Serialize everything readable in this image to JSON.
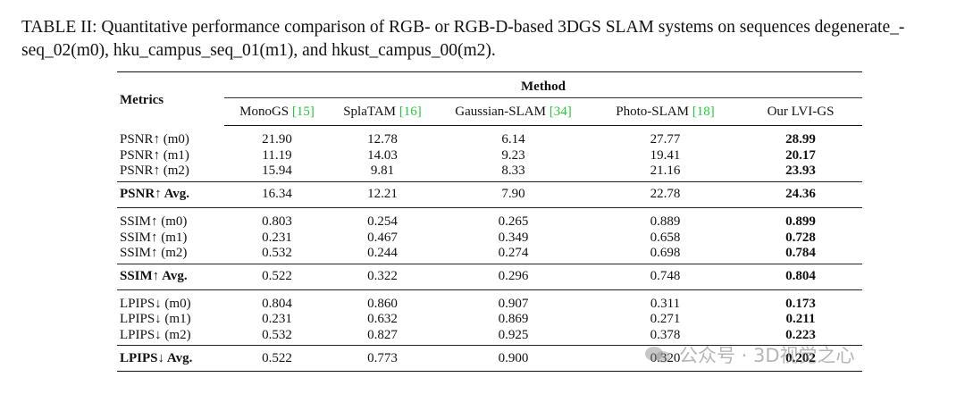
{
  "caption": "TABLE II: Quantitative performance comparison of RGB- or RGB-D-based 3DGS SLAM systems on sequences degenerate_-seq_02(m0), hku_campus_seq_01(m1), and hkust_campus_00(m2).",
  "header": {
    "metrics_label": "Metrics",
    "method_label": "Method",
    "methods": [
      {
        "name": "MonoGS",
        "ref": "[15]"
      },
      {
        "name": "SplaTAM",
        "ref": "[16]"
      },
      {
        "name": "Gaussian-SLAM",
        "ref": "[34]"
      },
      {
        "name": "Photo-SLAM",
        "ref": "[18]"
      },
      {
        "name": "Our LVI-GS",
        "ref": ""
      }
    ]
  },
  "groups": [
    {
      "rows": [
        {
          "metric": "PSNR↑ (m0)",
          "values": [
            "21.90",
            "12.78",
            "6.14",
            "27.77",
            "28.99"
          ]
        },
        {
          "metric": "PSNR↑ (m1)",
          "values": [
            "11.19",
            "14.03",
            "9.23",
            "19.41",
            "20.17"
          ]
        },
        {
          "metric": "PSNR↑ (m2)",
          "values": [
            "15.94",
            "9.81",
            "8.33",
            "21.16",
            "23.93"
          ]
        }
      ],
      "avg": {
        "metric": "PSNR↑ Avg.",
        "values": [
          "16.34",
          "12.21",
          "7.90",
          "22.78",
          "24.36"
        ]
      }
    },
    {
      "rows": [
        {
          "metric": "SSIM↑ (m0)",
          "values": [
            "0.803",
            "0.254",
            "0.265",
            "0.889",
            "0.899"
          ]
        },
        {
          "metric": "SSIM↑ (m1)",
          "values": [
            "0.231",
            "0.467",
            "0.349",
            "0.658",
            "0.728"
          ]
        },
        {
          "metric": "SSIM↑ (m2)",
          "values": [
            "0.532",
            "0.244",
            "0.274",
            "0.698",
            "0.784"
          ]
        }
      ],
      "avg": {
        "metric": "SSIM↑ Avg.",
        "values": [
          "0.522",
          "0.322",
          "0.296",
          "0.748",
          "0.804"
        ]
      }
    },
    {
      "rows": [
        {
          "metric": "LPIPS↓ (m0)",
          "values": [
            "0.804",
            "0.860",
            "0.907",
            "0.311",
            "0.173"
          ]
        },
        {
          "metric": "LPIPS↓ (m1)",
          "values": [
            "0.231",
            "0.632",
            "0.869",
            "0.271",
            "0.211"
          ]
        },
        {
          "metric": "LPIPS↓ (m2)",
          "values": [
            "0.532",
            "0.827",
            "0.925",
            "0.378",
            "0.223"
          ]
        }
      ],
      "avg": {
        "metric": "LPIPS↓ Avg.",
        "values": [
          "0.522",
          "0.773",
          "0.900",
          "0.320",
          "0.202"
        ]
      }
    }
  ],
  "watermark": {
    "text": "公众号 · 3D视觉之心",
    "icon": "wechat-icon"
  },
  "colors": {
    "ref": "#22c93a",
    "text": "#111111"
  }
}
